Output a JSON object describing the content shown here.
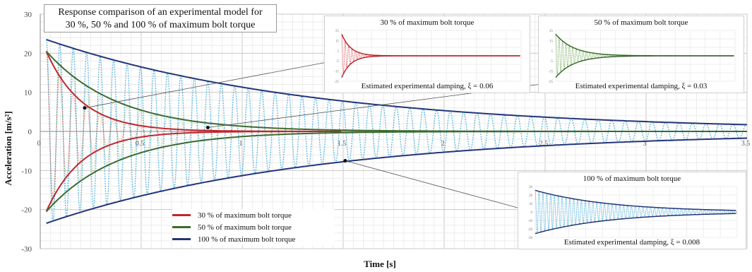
{
  "chart_data": [
    {
      "type": "line",
      "title": "Response comparison of an experimental model for 30 %, 50 % and 100 % of maximum bolt torque",
      "xlabel": "Time [s]",
      "ylabel": "Acceleration [m/s²]",
      "xlim": [
        0,
        3.5
      ],
      "ylim": [
        -30,
        30
      ],
      "x_ticks": [
        "0",
        "0.5",
        "1",
        "1.5",
        "2",
        "2.5",
        "3",
        "3.5"
      ],
      "y_ticks": [
        "30",
        "20",
        "10",
        "0",
        "-10",
        "-20",
        "-30"
      ],
      "grid": true,
      "legend_position": "bottom-center",
      "series": [
        {
          "name": "30 % of maximum bolt torque",
          "color": "#c0262d",
          "amplitude": 20.5,
          "damping_ratio": 0.06,
          "frequency_hz": 15,
          "envelope_end_s": 1.5
        },
        {
          "name": "50 % of maximum bolt torque",
          "color": "#3b6b2f",
          "amplitude": 20.5,
          "damping_ratio": 0.03,
          "frequency_hz": 15,
          "envelope_end_s": 3.5
        },
        {
          "name": "100 % of maximum bolt torque",
          "color": "#22357a",
          "amplitude": 23.5,
          "damping_ratio": 0.008,
          "frequency_hz": 15,
          "envelope_end_s": 3.5
        }
      ]
    },
    {
      "type": "line",
      "title": "30 % of maximum bolt torque",
      "annotation": "Estimated experimental damping, ξ = 0.06",
      "damping_ratio": 0.06,
      "color": "#c0262d",
      "y_ticks": [
        "25",
        "15",
        "5",
        "-5",
        "-15",
        "-25"
      ]
    },
    {
      "type": "line",
      "title": "50 % of maximum bolt torque",
      "annotation": "Estimated experimental damping, ξ = 0.03",
      "damping_ratio": 0.03,
      "color": "#3b6b2f",
      "y_ticks": [
        "25",
        "15",
        "5",
        "-5",
        "-15",
        "-25"
      ]
    },
    {
      "type": "line",
      "title": "100 % of maximum bolt torque",
      "annotation": "Estimated experimental damping, ξ = 0.008",
      "damping_ratio": 0.008,
      "color": "#3aa6d8",
      "y_ticks": [
        "30",
        "20",
        "10",
        "0",
        "-10",
        "-20",
        "-30"
      ]
    }
  ],
  "title_line_1": "Response comparison of an experimental model for",
  "title_line_2": "30 %, 50 % and 100 % of maximum bolt torque",
  "ylabel_text": "Acceleration [m/s²]",
  "xlabel_text": "Time [s]",
  "legend": [
    {
      "label": "30 % of maximum bolt torque",
      "color": "#c0262d"
    },
    {
      "label": "50 % of maximum bolt torque",
      "color": "#3b6b2f"
    },
    {
      "label": "100 % of maximum bolt torque",
      "color": "#22357a"
    }
  ],
  "insets": {
    "i30": {
      "title": "30 % of maximum bolt torque",
      "note": "Estimated experimental damping, ξ = 0.06"
    },
    "i50": {
      "title": "50 % of maximum bolt torque",
      "note": "Estimated experimental damping, ξ = 0.03"
    },
    "i100": {
      "title": "100 % of maximum bolt torque",
      "note": "Estimated experimental damping, ξ = 0.008"
    }
  }
}
